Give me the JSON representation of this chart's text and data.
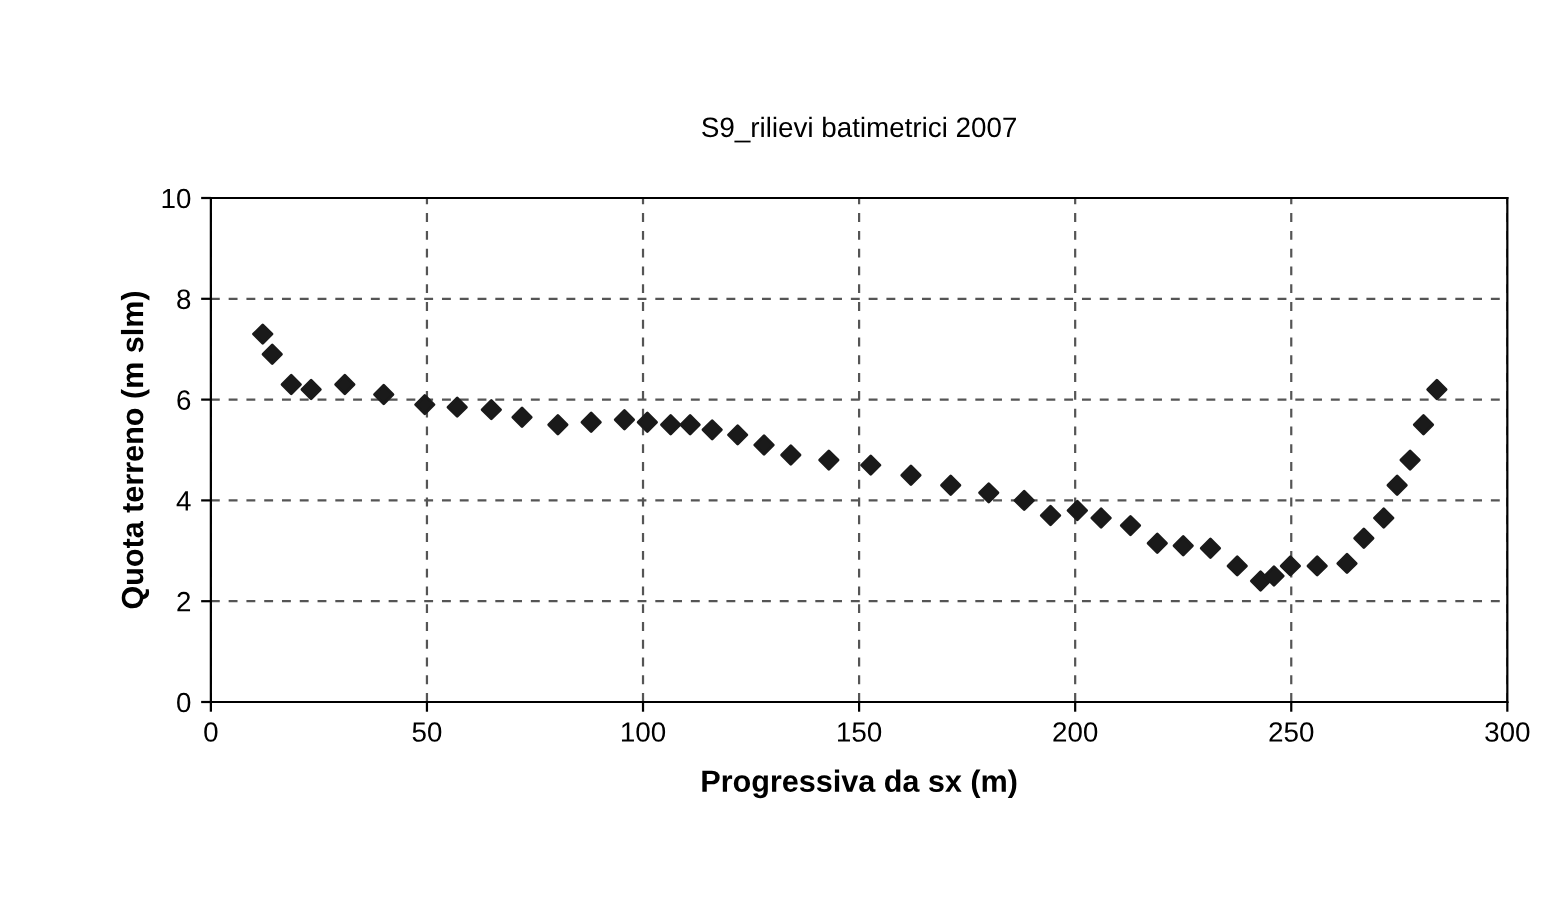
{
  "chart_data": {
    "type": "scatter",
    "title": "S9_rilievi batimetrici 2007",
    "xlabel": "Progressiva da sx (m)",
    "ylabel": "Quota terreno (m slm)",
    "x": [
      12,
      14.2,
      18.6,
      23.2,
      31,
      40,
      49.5,
      57,
      64.9,
      72,
      80.3,
      88,
      95.7,
      101,
      106.4,
      110.9,
      116,
      121.9,
      128,
      134.2,
      143,
      152.7,
      162,
      171.2,
      180,
      188.2,
      194.3,
      200.5,
      206,
      212.8,
      219,
      225,
      231.3,
      237.5,
      242.9,
      246,
      249.8,
      256,
      262.9,
      266.8,
      271.4,
      274.5,
      277.5,
      280.6,
      283.7
    ],
    "values": [
      7.3,
      6.9,
      6.3,
      6.2,
      6.3,
      6.1,
      5.9,
      5.85,
      5.8,
      5.65,
      5.5,
      5.55,
      5.6,
      5.55,
      5.5,
      5.5,
      5.4,
      5.3,
      5.1,
      4.9,
      4.8,
      4.7,
      4.5,
      4.3,
      4.15,
      4.0,
      3.7,
      3.8,
      3.65,
      3.5,
      3.15,
      3.1,
      3.05,
      2.7,
      2.4,
      2.5,
      2.7,
      2.7,
      2.75,
      3.25,
      3.65,
      4.3,
      4.8,
      5.5,
      6.2
    ],
    "color": "#1a1a1a",
    "marker": "diamond",
    "xlim": [
      0,
      300
    ],
    "xticks": [
      0,
      50,
      100,
      150,
      200,
      250,
      300
    ],
    "ylim": [
      0,
      10
    ],
    "yticks": [
      0,
      2,
      4,
      6,
      8,
      10
    ],
    "grid": true
  }
}
